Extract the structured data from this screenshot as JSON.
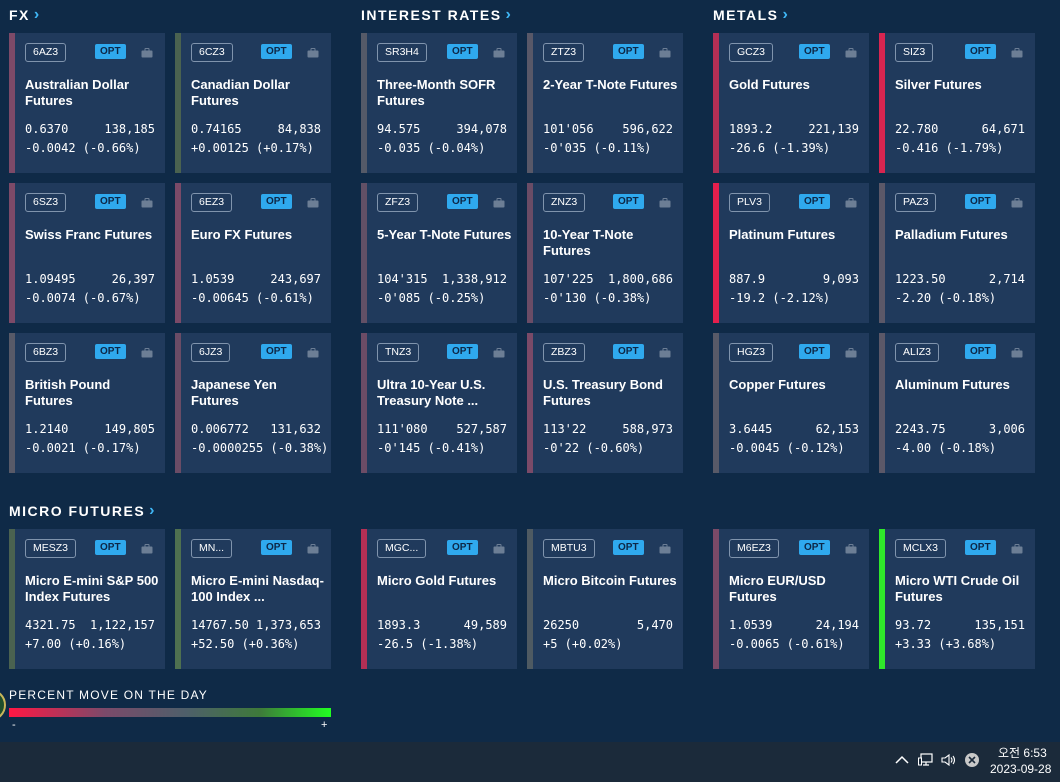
{
  "sections": [
    {
      "title": "FX"
    },
    {
      "title": "INTEREST RATES"
    },
    {
      "title": "METALS"
    },
    {
      "title": "MICRO FUTURES"
    }
  ],
  "opt_label": "OPT",
  "cards": [
    {
      "symbol": "6AZ3",
      "name": "Australian Dollar Futures",
      "price": "0.6370",
      "volume": "138,185",
      "change": "-0.0042 (-0.66%)",
      "bar_color": "#7d4a68"
    },
    {
      "symbol": "6CZ3",
      "name": "Canadian Dollar Futures",
      "price": "0.74165",
      "volume": "84,838",
      "change": "+0.00125 (+0.17%)",
      "bar_color": "#4a6250"
    },
    {
      "symbol": "SR3H4",
      "name": "Three-Month SOFR Futures",
      "price": "94.575",
      "volume": "394,078",
      "change": "-0.035 (-0.04%)",
      "bar_color": "#555a68"
    },
    {
      "symbol": "ZTZ3",
      "name": "2-Year T-Note Futures",
      "price": "101'056",
      "volume": "596,622",
      "change": "-0'035 (-0.11%)",
      "bar_color": "#585868"
    },
    {
      "symbol": "GCZ3",
      "name": "Gold Futures",
      "price": "1893.2",
      "volume": "221,139",
      "change": "-26.6 (-1.39%)",
      "bar_color": "#b42f55"
    },
    {
      "symbol": "SIZ3",
      "name": "Silver Futures",
      "price": "22.780",
      "volume": "64,671",
      "change": "-0.416 (-1.79%)",
      "bar_color": "#d82550"
    },
    {
      "symbol": "6SZ3",
      "name": "Swiss Franc Futures",
      "price": "1.09495",
      "volume": "26,397",
      "change": "-0.0074 (-0.67%)",
      "bar_color": "#7d4a68"
    },
    {
      "symbol": "6EZ3",
      "name": "Euro FX Futures",
      "price": "1.0539",
      "volume": "243,697",
      "change": "-0.00645 (-0.61%)",
      "bar_color": "#7a4a68"
    },
    {
      "symbol": "ZFZ3",
      "name": "5-Year T-Note Futures",
      "price": "104'315",
      "volume": "1,338,912",
      "change": "-0'085 (-0.25%)",
      "bar_color": "#625066"
    },
    {
      "symbol": "ZNZ3",
      "name": "10-Year T-Note Futures",
      "price": "107'225",
      "volume": "1,800,686",
      "change": "-0'130 (-0.38%)",
      "bar_color": "#6a4c66"
    },
    {
      "symbol": "PLV3",
      "name": "Platinum Futures",
      "price": "887.9",
      "volume": "9,093",
      "change": "-19.2 (-2.12%)",
      "bar_color": "#e41f4d"
    },
    {
      "symbol": "PAZ3",
      "name": "Palladium Futures",
      "price": "1223.50",
      "volume": "2,714",
      "change": "-2.20 (-0.18%)",
      "bar_color": "#5b5868"
    },
    {
      "symbol": "6BZ3",
      "name": "British Pound Futures",
      "price": "1.2140",
      "volume": "149,805",
      "change": "-0.0021 (-0.17%)",
      "bar_color": "#585a68"
    },
    {
      "symbol": "6JZ3",
      "name": "Japanese Yen Futures",
      "price": "0.006772",
      "volume": "131,632",
      "change": "-0.0000255 (-0.38%)",
      "bar_color": "#6a4c66"
    },
    {
      "symbol": "TNZ3",
      "name": "Ultra 10-Year U.S. Treasury Note ...",
      "price": "111'080",
      "volume": "527,587",
      "change": "-0'145 (-0.41%)",
      "bar_color": "#6c4c66"
    },
    {
      "symbol": "ZBZ3",
      "name": "U.S. Treasury Bond Futures",
      "price": "113'22",
      "volume": "588,973",
      "change": "-0'22 (-0.60%)",
      "bar_color": "#7a4a68"
    },
    {
      "symbol": "HGZ3",
      "name": "Copper Futures",
      "price": "3.6445",
      "volume": "62,153",
      "change": "-0.0045 (-0.12%)",
      "bar_color": "#585a68"
    },
    {
      "symbol": "ALIZ3",
      "name": "Aluminum Futures",
      "price": "2243.75",
      "volume": "3,006",
      "change": "-4.00 (-0.18%)",
      "bar_color": "#5b5868"
    },
    {
      "symbol": "MESZ3",
      "name": "Micro E-mini S&P 500 Index Futures",
      "price": "4321.75",
      "volume": "1,122,157",
      "change": "+7.00 (+0.16%)",
      "bar_color": "#4a6250"
    },
    {
      "symbol": "MN...",
      "name": "Micro E-mini Nasdaq-100 Index ...",
      "price": "14767.50",
      "volume": "1,373,653",
      "change": "+52.50 (+0.36%)",
      "bar_color": "#4e7050"
    },
    {
      "symbol": "MGC...",
      "name": "Micro Gold Futures",
      "price": "1893.3",
      "volume": "49,589",
      "change": "-26.5 (-1.38%)",
      "bar_color": "#b42f55"
    },
    {
      "symbol": "MBTU3",
      "name": "Micro Bitcoin Futures",
      "price": "26250",
      "volume": "5,470",
      "change": "+5 (+0.02%)",
      "bar_color": "#4e5a62"
    },
    {
      "symbol": "M6EZ3",
      "name": "Micro EUR/USD Futures",
      "price": "1.0539",
      "volume": "24,194",
      "change": "-0.0065 (-0.61%)",
      "bar_color": "#7a4a68"
    },
    {
      "symbol": "MCLX3",
      "name": "Micro WTI Crude Oil Futures",
      "price": "93.72",
      "volume": "135,151",
      "change": "+3.33 (+3.68%)",
      "bar_color": "#2fe82a"
    }
  ],
  "legend": {
    "title": "PERCENT MOVE ON THE DAY",
    "minus": "-",
    "plus": "+"
  },
  "taskbar": {
    "time": "오전 6:53",
    "date": "2023-09-28"
  }
}
